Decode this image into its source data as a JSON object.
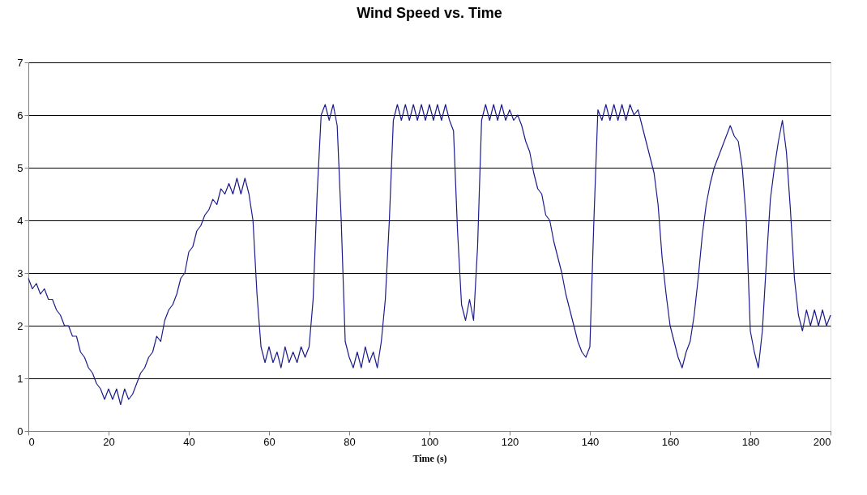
{
  "chart_data": {
    "type": "line",
    "title": "Wind Speed vs. Time",
    "xlabel": "Time (s)",
    "x": [
      0,
      1,
      2,
      3,
      4,
      5,
      6,
      7,
      8,
      9,
      10,
      11,
      12,
      13,
      14,
      15,
      16,
      17,
      18,
      19,
      20,
      21,
      22,
      23,
      24,
      25,
      26,
      27,
      28,
      29,
      30,
      31,
      32,
      33,
      34,
      35,
      36,
      37,
      38,
      39,
      40,
      41,
      42,
      43,
      44,
      45,
      46,
      47,
      48,
      49,
      50,
      51,
      52,
      53,
      54,
      55,
      56,
      57,
      58,
      59,
      60,
      61,
      62,
      63,
      64,
      65,
      66,
      67,
      68,
      69,
      70,
      71,
      72,
      73,
      74,
      75,
      76,
      77,
      78,
      79,
      80,
      81,
      82,
      83,
      84,
      85,
      86,
      87,
      88,
      89,
      90,
      91,
      92,
      93,
      94,
      95,
      96,
      97,
      98,
      99,
      100,
      101,
      102,
      103,
      104,
      105,
      106,
      107,
      108,
      109,
      110,
      111,
      112,
      113,
      114,
      115,
      116,
      117,
      118,
      119,
      120,
      121,
      122,
      123,
      124,
      125,
      126,
      127,
      128,
      129,
      130,
      131,
      132,
      133,
      134,
      135,
      136,
      137,
      138,
      139,
      140,
      141,
      142,
      143,
      144,
      145,
      146,
      147,
      148,
      149,
      150,
      151,
      152,
      153,
      154,
      155,
      156,
      157,
      158,
      159,
      160,
      161,
      162,
      163,
      164,
      165,
      166,
      167,
      168,
      169,
      170,
      171,
      172,
      173,
      174,
      175,
      176,
      177,
      178,
      179,
      180,
      181,
      182,
      183,
      184,
      185,
      186,
      187,
      188,
      189,
      190,
      191,
      192,
      193,
      194,
      195,
      196,
      197,
      198,
      199,
      200
    ],
    "series": [
      {
        "color": "#1c1c8c",
        "values": [
          2.9,
          2.7,
          2.8,
          2.6,
          2.7,
          2.5,
          2.5,
          2.3,
          2.2,
          2.0,
          2.0,
          1.8,
          1.8,
          1.5,
          1.4,
          1.2,
          1.1,
          0.9,
          0.8,
          0.6,
          0.8,
          0.6,
          0.8,
          0.5,
          0.8,
          0.6,
          0.7,
          0.9,
          1.1,
          1.2,
          1.4,
          1.5,
          1.8,
          1.7,
          2.1,
          2.3,
          2.4,
          2.6,
          2.9,
          3.0,
          3.4,
          3.5,
          3.8,
          3.9,
          4.1,
          4.2,
          4.4,
          4.3,
          4.6,
          4.5,
          4.7,
          4.5,
          4.8,
          4.5,
          4.8,
          4.5,
          4.0,
          2.6,
          1.6,
          1.3,
          1.6,
          1.3,
          1.5,
          1.2,
          1.6,
          1.3,
          1.5,
          1.3,
          1.6,
          1.4,
          1.6,
          2.5,
          4.5,
          6.0,
          6.2,
          5.9,
          6.2,
          5.8,
          4.0,
          1.7,
          1.4,
          1.2,
          1.5,
          1.2,
          1.6,
          1.3,
          1.5,
          1.2,
          1.7,
          2.5,
          4.0,
          5.9,
          6.2,
          5.9,
          6.2,
          5.9,
          6.2,
          5.9,
          6.2,
          5.9,
          6.2,
          5.9,
          6.2,
          5.9,
          6.2,
          5.9,
          5.7,
          3.8,
          2.4,
          2.1,
          2.5,
          2.1,
          3.5,
          5.9,
          6.2,
          5.9,
          6.2,
          5.9,
          6.2,
          5.9,
          6.1,
          5.9,
          6.0,
          5.8,
          5.5,
          5.3,
          4.9,
          4.6,
          4.5,
          4.1,
          4.0,
          3.6,
          3.3,
          3.0,
          2.6,
          2.3,
          2.0,
          1.7,
          1.5,
          1.4,
          1.6,
          4.0,
          6.1,
          5.9,
          6.2,
          5.9,
          6.2,
          5.9,
          6.2,
          5.9,
          6.2,
          6.0,
          6.1,
          5.8,
          5.5,
          5.2,
          4.9,
          4.3,
          3.3,
          2.6,
          2.0,
          1.7,
          1.4,
          1.2,
          1.5,
          1.7,
          2.2,
          2.9,
          3.7,
          4.3,
          4.7,
          5.0,
          5.2,
          5.4,
          5.6,
          5.8,
          5.6,
          5.5,
          5.0,
          4.0,
          1.9,
          1.5,
          1.2,
          1.9,
          3.2,
          4.4,
          5.0,
          5.5,
          5.9,
          5.3,
          4.2,
          2.9,
          2.2,
          1.9,
          2.3,
          2.0,
          2.3,
          2.0,
          2.3,
          2.0,
          2.2
        ]
      }
    ],
    "xlim": [
      0,
      200
    ],
    "xticks": [
      0,
      20,
      40,
      60,
      80,
      100,
      120,
      140,
      160,
      180,
      200
    ],
    "ylim": [
      0,
      7
    ],
    "yticks": [
      0,
      1,
      2,
      3,
      4,
      5,
      6,
      7
    ],
    "grid": "y",
    "legend": false,
    "marker": "none",
    "line_style": "solid"
  }
}
